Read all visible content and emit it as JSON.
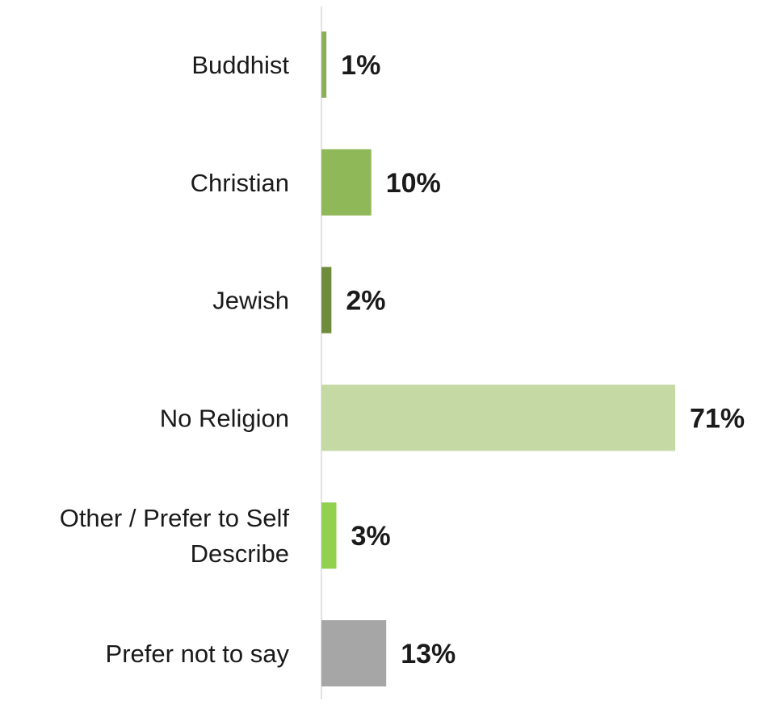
{
  "chart_data": {
    "type": "bar",
    "orientation": "horizontal",
    "categories": [
      "Buddhist",
      "Christian",
      "Jewish",
      "No Religion",
      "Other / Prefer to Self Describe",
      "Prefer not to say"
    ],
    "category_lines": [
      [
        "Buddhist"
      ],
      [
        "Christian"
      ],
      [
        "Jewish"
      ],
      [
        "No Religion"
      ],
      [
        "Other / Prefer to Self",
        "Describe"
      ],
      [
        "Prefer not to say"
      ]
    ],
    "values": [
      1,
      10,
      2,
      71,
      3,
      13
    ],
    "value_labels": [
      "1%",
      "10%",
      "2%",
      "71%",
      "3%",
      "13%"
    ],
    "colors": [
      "#8cb05a",
      "#8fb858",
      "#6e8c3c",
      "#c5d9a5",
      "#92d050",
      "#a6a6a6"
    ],
    "title": "",
    "xlabel": "",
    "ylabel": "",
    "xlim": [
      0,
      71
    ],
    "grid": false,
    "legend": "none"
  }
}
